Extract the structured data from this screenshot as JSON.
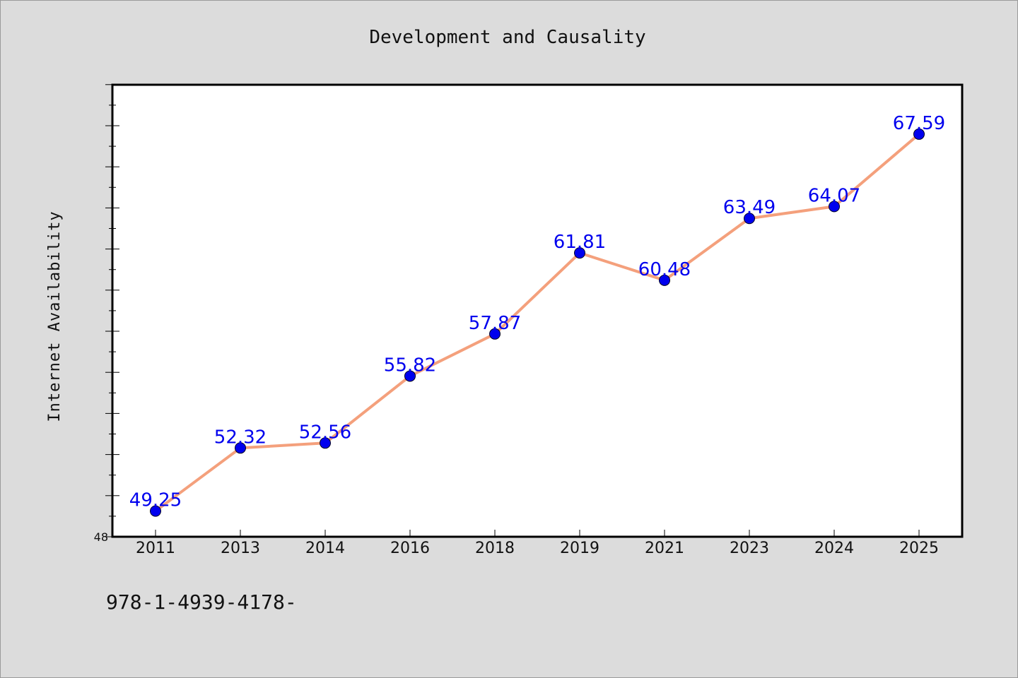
{
  "chart_data": {
    "type": "line",
    "title": "Development and Causality",
    "ylabel": "Internet Availability",
    "xlabel": "",
    "categories": [
      "2011",
      "2013",
      "2014",
      "2016",
      "2018",
      "2019",
      "2021",
      "2023",
      "2024",
      "2025"
    ],
    "values": [
      49.25,
      52.32,
      52.56,
      55.82,
      57.87,
      61.81,
      60.48,
      63.49,
      64.07,
      67.59
    ],
    "data_labels": [
      "49.25",
      "52.32",
      "52.56",
      "55.82",
      "57.87",
      "61.81",
      "60.48",
      "63.49",
      "64.07",
      "67.59"
    ],
    "y_tick_labels": [
      "48"
    ],
    "ylim": [
      48,
      70
    ],
    "grid": false,
    "line_color": "#f4a07c",
    "marker_color": "#0000ee",
    "label_color": "#0000ee"
  },
  "footer": "978-1-4939-4178-"
}
